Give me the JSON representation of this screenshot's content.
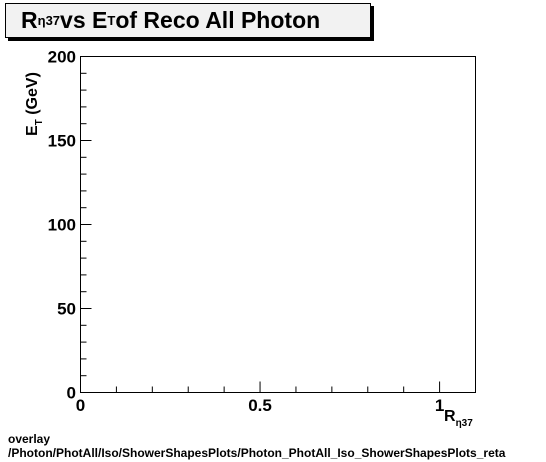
{
  "chart_data": {
    "type": "scatter",
    "title": {
      "prefix": "R",
      "prefix_sub": "η37",
      "middle": " vs E",
      "middle_sub": "T",
      "suffix": " of Reco All Photon"
    },
    "xlabel": {
      "main": "R",
      "sub": "η37"
    },
    "ylabel": {
      "main": "E",
      "sub": "T",
      "suffix": " (GeV)"
    },
    "xlim": [
      0,
      1.1
    ],
    "ylim": [
      0,
      200
    ],
    "x_tick_labels": [
      "0",
      "0.5",
      "1"
    ],
    "y_tick_labels": [
      "0",
      "50",
      "100",
      "150",
      "200"
    ],
    "series": [
      {
        "x": [],
        "y": []
      }
    ],
    "grid": false,
    "legend": "none"
  },
  "footer": {
    "line1": "overlay",
    "line2": "/Photon/PhotAll/Iso/ShowerShapesPlots/Photon_PhotAll_Iso_ShowerShapesPlots_reta"
  }
}
